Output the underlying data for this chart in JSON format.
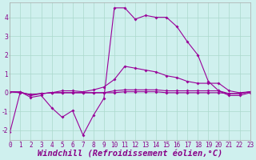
{
  "xlabel": "Windchill (Refroidissement éolien,°C)",
  "ylabel": "",
  "background_color": "#cff0ee",
  "grid_color": "#aad8cc",
  "line_color": "#990099",
  "hours": [
    0,
    1,
    2,
    3,
    4,
    5,
    6,
    7,
    8,
    9,
    10,
    11,
    12,
    13,
    14,
    15,
    16,
    17,
    18,
    19,
    20,
    21,
    22,
    23
  ],
  "series1": [
    -2.1,
    0.05,
    -0.25,
    -0.15,
    -0.8,
    -1.3,
    -0.95,
    -2.25,
    -1.2,
    -0.3,
    4.5,
    4.5,
    3.9,
    4.1,
    4.0,
    4.0,
    3.5,
    2.7,
    2.0,
    0.6,
    0.1,
    -0.15,
    -0.15,
    0.0
  ],
  "series2": [
    0.05,
    0.05,
    -0.15,
    -0.05,
    0.0,
    0.1,
    0.1,
    0.05,
    0.15,
    0.3,
    0.7,
    1.4,
    1.3,
    1.2,
    1.1,
    0.9,
    0.8,
    0.6,
    0.5,
    0.5,
    0.5,
    0.1,
    0.0,
    0.05
  ],
  "series3": [
    0.05,
    0.0,
    -0.1,
    -0.05,
    0.0,
    0.0,
    0.0,
    0.0,
    0.0,
    0.0,
    0.1,
    0.15,
    0.15,
    0.15,
    0.15,
    0.1,
    0.1,
    0.1,
    0.1,
    0.1,
    0.1,
    -0.05,
    -0.05,
    0.05
  ],
  "series4": [
    0.05,
    0.0,
    -0.1,
    -0.05,
    0.0,
    0.0,
    0.0,
    0.0,
    0.0,
    0.0,
    0.0,
    0.05,
    0.05,
    0.05,
    0.05,
    0.0,
    0.0,
    0.0,
    0.0,
    0.0,
    0.0,
    -0.05,
    -0.05,
    0.05
  ],
  "ylim": [
    -2.5,
    4.8
  ],
  "xlim": [
    0,
    23
  ],
  "yticks": [
    -2,
    -1,
    0,
    1,
    2,
    3,
    4
  ],
  "xticks": [
    0,
    1,
    2,
    3,
    4,
    5,
    6,
    7,
    8,
    9,
    10,
    11,
    12,
    13,
    14,
    15,
    16,
    17,
    18,
    19,
    20,
    21,
    22,
    23
  ],
  "xtick_labels": [
    "0",
    "1",
    "2",
    "3",
    "4",
    "5",
    "6",
    "7",
    "8",
    "9",
    "10",
    "11",
    "12",
    "13",
    "14",
    "15",
    "16",
    "17",
    "18",
    "19",
    "20",
    "21",
    "22",
    "23"
  ],
  "tick_fontsize": 5.5,
  "xlabel_fontsize": 7.5
}
